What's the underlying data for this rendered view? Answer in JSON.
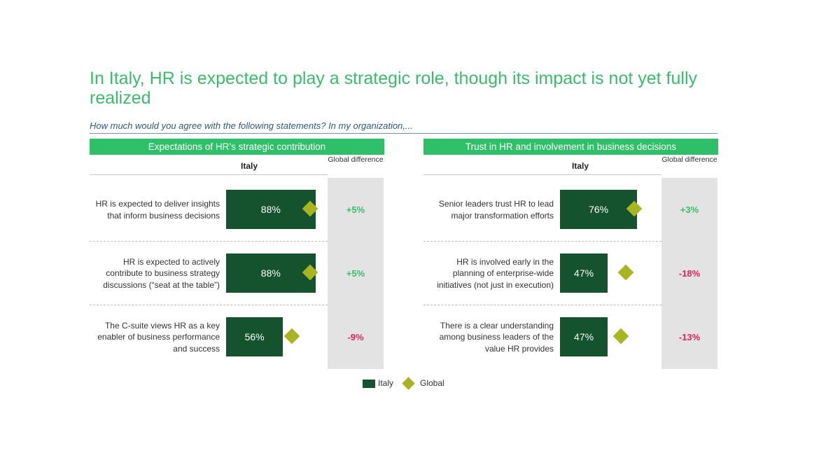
{
  "title": "In Italy, HR is expected to play a strategic role, though its impact is not yet fully realized",
  "question": "How much would you agree with the following statements? In my organization,...",
  "colors": {
    "italy_bar": "#14532d",
    "global_marker": "#a8b521",
    "header": "#2fbf68",
    "positive": "#3dbb6c",
    "negative": "#e0245e"
  },
  "legend": {
    "italy": "Italy",
    "global": "Global"
  },
  "chart_data": [
    {
      "type": "bar",
      "title": "Expectations of HR’s strategic contribution",
      "series_header": "Italy",
      "diff_header": "Global difference",
      "categories": [
        "HR is expected to deliver insights that inform business decisions",
        "HR is expected to actively contribute to business strategy discussions (“seat at the table”)",
        "The C-suite views HR as a key enabler of business performance and success"
      ],
      "series": [
        {
          "name": "Italy",
          "values": [
            88,
            88,
            56
          ]
        },
        {
          "name": "Global",
          "values": [
            83,
            83,
            65
          ]
        }
      ],
      "labels": [
        "88%",
        "88%",
        "56%"
      ],
      "global_difference": [
        "+5%",
        "+5%",
        "-9%"
      ],
      "xlim": [
        0,
        100
      ]
    },
    {
      "type": "bar",
      "title": "Trust in HR and involvement in business decisions",
      "series_header": "Italy",
      "diff_header": "Global difference",
      "categories": [
        "Senior leaders trust HR to lead major transformation efforts",
        "HR is involved early in the planning of enterprise-wide initiatives (not just in execution)",
        "There is a clear understanding among business leaders of the value HR provides"
      ],
      "series": [
        {
          "name": "Italy",
          "values": [
            76,
            47,
            47
          ]
        },
        {
          "name": "Global",
          "values": [
            73,
            65,
            60
          ]
        }
      ],
      "labels": [
        "76%",
        "47%",
        "47%"
      ],
      "global_difference": [
        "+3%",
        "-18%",
        "-13%"
      ],
      "xlim": [
        0,
        100
      ]
    }
  ]
}
